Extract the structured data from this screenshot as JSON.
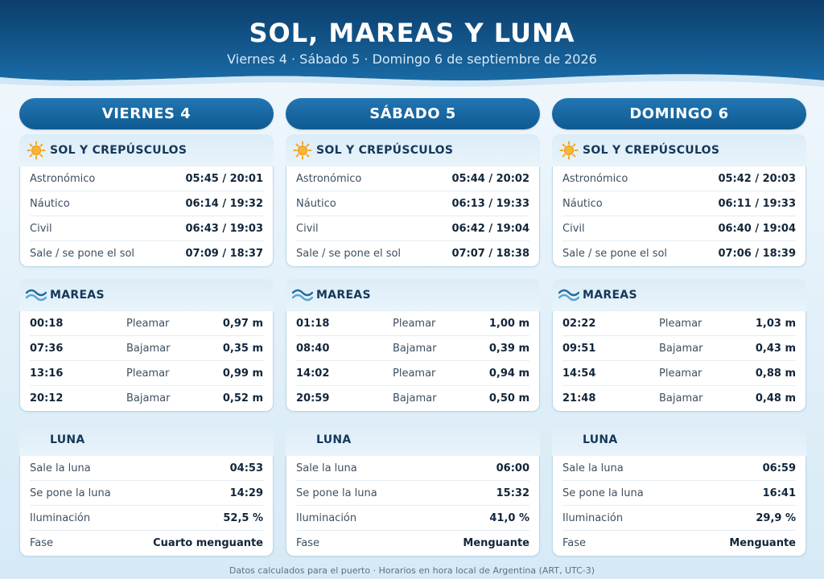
{
  "header": {
    "title": "SOL, MAREAS Y LUNA",
    "subtitle": "Viernes 4 · Sábado 5 · Domingo 6 de septiembre de 2026"
  },
  "sections": {
    "sun": "SOL Y CREPÚSCULOS",
    "tides": "MAREAS",
    "moon": "LUNA"
  },
  "colors": {
    "header_dark": "#0b3e6b",
    "header_light": "#1a6aa5",
    "sun_icon": "#f5a623",
    "wave_icon": "#1f6d9e",
    "moon_icon": "#23486e"
  },
  "icons": {
    "sun": "sun-icon",
    "tides": "wave-icon",
    "moon": "moon-icon"
  },
  "days": [
    {
      "label": "VIERNES 4",
      "sun": [
        {
          "label": "Astronómico",
          "value": "05:45 / 20:01"
        },
        {
          "label": "Náutico",
          "value": "06:14 / 19:32"
        },
        {
          "label": "Civil",
          "value": "06:43 / 19:03"
        },
        {
          "label": "Sale / se pone el sol",
          "value": "07:09 / 18:37"
        }
      ],
      "tides": [
        {
          "time": "00:18",
          "type": "Pleamar",
          "height": "0,97 m"
        },
        {
          "time": "07:36",
          "type": "Bajamar",
          "height": "0,35 m"
        },
        {
          "time": "13:16",
          "type": "Pleamar",
          "height": "0,99 m"
        },
        {
          "time": "20:12",
          "type": "Bajamar",
          "height": "0,52 m"
        }
      ],
      "moon": [
        {
          "label": "Sale la luna",
          "value": "04:53"
        },
        {
          "label": "Se pone la luna",
          "value": "14:29"
        },
        {
          "label": "Iluminación",
          "value": "52,5 %"
        },
        {
          "label": "Fase",
          "value": "Cuarto menguante"
        }
      ]
    },
    {
      "label": "SÁBADO 5",
      "sun": [
        {
          "label": "Astronómico",
          "value": "05:44 / 20:02"
        },
        {
          "label": "Náutico",
          "value": "06:13 / 19:33"
        },
        {
          "label": "Civil",
          "value": "06:42 / 19:04"
        },
        {
          "label": "Sale / se pone el sol",
          "value": "07:07 / 18:38"
        }
      ],
      "tides": [
        {
          "time": "01:18",
          "type": "Pleamar",
          "height": "1,00 m"
        },
        {
          "time": "08:40",
          "type": "Bajamar",
          "height": "0,39 m"
        },
        {
          "time": "14:02",
          "type": "Pleamar",
          "height": "0,94 m"
        },
        {
          "time": "20:59",
          "type": "Bajamar",
          "height": "0,50 m"
        }
      ],
      "moon": [
        {
          "label": "Sale la luna",
          "value": "06:00"
        },
        {
          "label": "Se pone la luna",
          "value": "15:32"
        },
        {
          "label": "Iluminación",
          "value": "41,0 %"
        },
        {
          "label": "Fase",
          "value": "Menguante"
        }
      ]
    },
    {
      "label": "DOMINGO 6",
      "sun": [
        {
          "label": "Astronómico",
          "value": "05:42 / 20:03"
        },
        {
          "label": "Náutico",
          "value": "06:11 / 19:33"
        },
        {
          "label": "Civil",
          "value": "06:40 / 19:04"
        },
        {
          "label": "Sale / se pone el sol",
          "value": "07:06 / 18:39"
        }
      ],
      "tides": [
        {
          "time": "02:22",
          "type": "Pleamar",
          "height": "1,03 m"
        },
        {
          "time": "09:51",
          "type": "Bajamar",
          "height": "0,43 m"
        },
        {
          "time": "14:54",
          "type": "Pleamar",
          "height": "0,88 m"
        },
        {
          "time": "21:48",
          "type": "Bajamar",
          "height": "0,48 m"
        }
      ],
      "moon": [
        {
          "label": "Sale la luna",
          "value": "06:59"
        },
        {
          "label": "Se pone la luna",
          "value": "16:41"
        },
        {
          "label": "Iluminación",
          "value": "29,9 %"
        },
        {
          "label": "Fase",
          "value": "Menguante"
        }
      ]
    }
  ],
  "footer": "Datos calculados para el puerto · Horarios en hora local de Argentina (ART, UTC-3)"
}
